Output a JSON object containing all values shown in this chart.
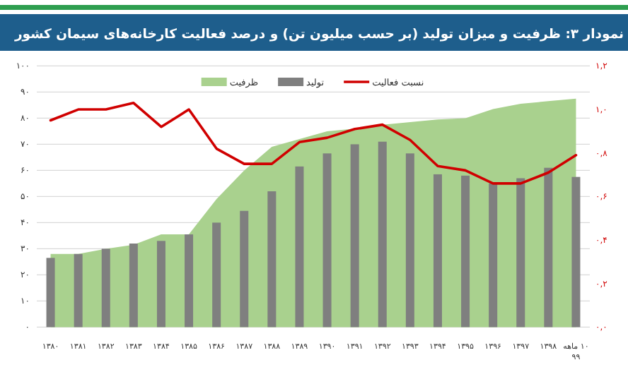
{
  "chart_data": {
    "type": "bar",
    "title": "نمودار ۳: ظرفیت و میزان تولید (بر حسب میلیون تن) و درصد فعالیت کارخانه‌های سیمان کشور",
    "categories": [
      "۱۳۸۰",
      "۱۳۸۱",
      "۱۳۸۲",
      "۱۳۸۳",
      "۱۳۸۴",
      "۱۳۸۵",
      "۱۳۸۶",
      "۱۳۸۷",
      "۱۳۸۸",
      "۱۳۸۹",
      "۱۳۹۰",
      "۱۳۹۱",
      "۱۳۹۲",
      "۱۳۹۳",
      "۱۳۹۴",
      "۱۳۹۵",
      "۱۳۹۶",
      "۱۳۹۷",
      "۱۳۹۸",
      "۱۰ ماهه ۹۹"
    ],
    "series": [
      {
        "name": "ظرفیت",
        "type": "area",
        "color": "#a9d18e",
        "values": [
          28,
          28,
          30,
          31.5,
          35.5,
          35.5,
          49,
          60,
          69,
          72,
          75,
          76,
          77.5,
          78.5,
          79.5,
          80,
          83.5,
          85.5,
          86.5,
          87.5
        ]
      },
      {
        "name": "تولید",
        "color": "#7f7f7f",
        "values": [
          26.5,
          28,
          30,
          32,
          33,
          35.5,
          40,
          44.5,
          52,
          61.5,
          66.5,
          70,
          71,
          66.5,
          58.5,
          58,
          55,
          57,
          61,
          57.5
        ]
      },
      {
        "name": "نسبت فعالیت",
        "type": "line",
        "axis": "y2",
        "color": "#d00000",
        "values": [
          0.95,
          1.0,
          1.0,
          1.03,
          0.92,
          1.0,
          0.82,
          0.75,
          0.75,
          0.85,
          0.87,
          0.91,
          0.93,
          0.86,
          0.74,
          0.72,
          0.66,
          0.66,
          0.71,
          0.79
        ]
      }
    ],
    "ylim": [
      0,
      100
    ],
    "yticks": [
      {
        "value": 0,
        "label": "۰"
      },
      {
        "value": 10,
        "label": "۱۰"
      },
      {
        "value": 20,
        "label": "۲۰"
      },
      {
        "value": 30,
        "label": "۳۰"
      },
      {
        "value": 40,
        "label": "۴۰"
      },
      {
        "value": 50,
        "label": "۵۰"
      },
      {
        "value": 60,
        "label": "۶۰"
      },
      {
        "value": 70,
        "label": "۷۰"
      },
      {
        "value": 80,
        "label": "۸۰"
      },
      {
        "value": 90,
        "label": "۹۰"
      },
      {
        "value": 100,
        "label": "۱۰۰"
      }
    ],
    "y2lim": [
      0,
      1.2
    ],
    "y2ticks": [
      {
        "value": 0,
        "label": "۰,۰"
      },
      {
        "value": 0.2,
        "label": "۰,۲"
      },
      {
        "value": 0.4,
        "label": "۰,۴"
      },
      {
        "value": 0.6,
        "label": "۰,۶"
      },
      {
        "value": 0.8,
        "label": "۰,۸"
      },
      {
        "value": 1.0,
        "label": "۱,۰"
      },
      {
        "value": 1.2,
        "label": "۱,۲"
      }
    ],
    "grid": "y",
    "legend": "top"
  }
}
